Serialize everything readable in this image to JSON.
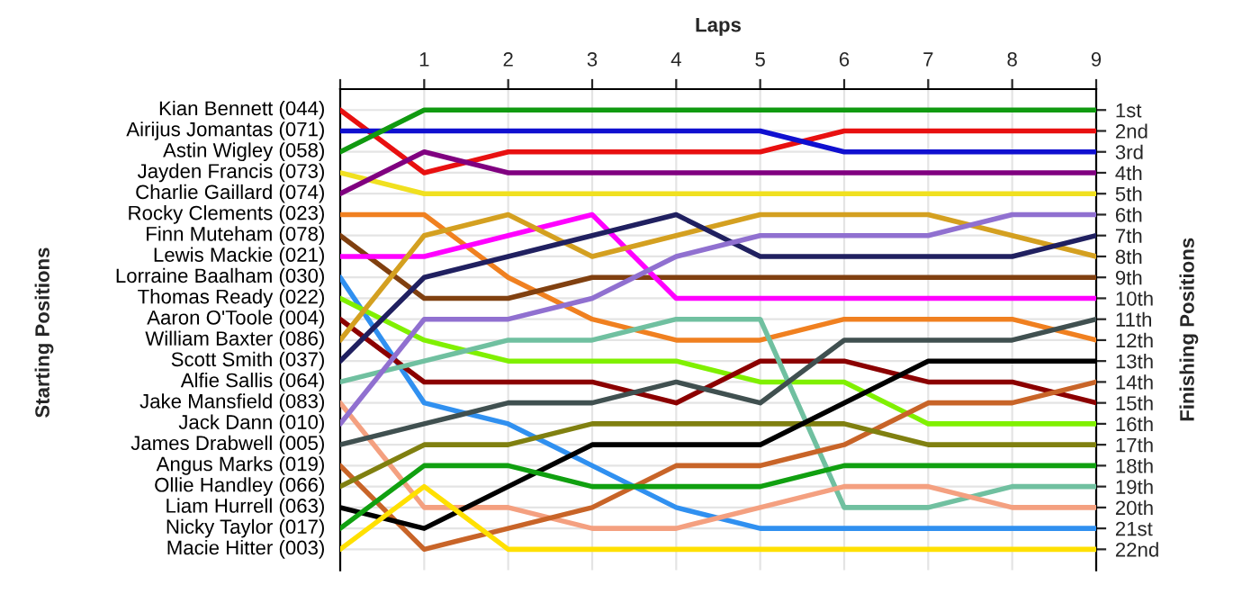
{
  "chart_data": {
    "type": "line",
    "xlabel": "Laps",
    "ylabel": "Finishing Positions",
    "annotations": [
      "Starting Positions"
    ],
    "x": [
      0,
      1,
      2,
      3,
      4,
      5,
      6,
      7,
      8,
      9
    ],
    "xlim": [
      0,
      9
    ],
    "xticks": [
      {
        "value": 0,
        "label": null
      },
      1,
      2,
      3,
      4,
      5,
      6,
      7,
      8,
      9
    ],
    "ylim": [
      23,
      0
    ],
    "yticks": [
      {
        "value": 1,
        "label": "1st"
      },
      {
        "value": 2,
        "label": "2nd"
      },
      {
        "value": 3,
        "label": "3rd"
      },
      {
        "value": 4,
        "label": "4th"
      },
      {
        "value": 5,
        "label": "5th"
      },
      {
        "value": 6,
        "label": "6th"
      },
      {
        "value": 7,
        "label": "7th"
      },
      {
        "value": 8,
        "label": "8th"
      },
      {
        "value": 9,
        "label": "9th"
      },
      {
        "value": 10,
        "label": "10th"
      },
      {
        "value": 11,
        "label": "11th"
      },
      {
        "value": 12,
        "label": "12th"
      },
      {
        "value": 13,
        "label": "13th"
      },
      {
        "value": 14,
        "label": "14th"
      },
      {
        "value": 15,
        "label": "15th"
      },
      {
        "value": 16,
        "label": "16th"
      },
      {
        "value": 17,
        "label": "17th"
      },
      {
        "value": 18,
        "label": "18th"
      },
      {
        "value": 19,
        "label": "19th"
      },
      {
        "value": 20,
        "label": "20th"
      },
      {
        "value": 21,
        "label": "21st"
      },
      {
        "value": 22,
        "label": "22nd"
      }
    ],
    "grid": true,
    "marker": "none",
    "line_style": "solid",
    "series": [
      {
        "name": "Kian Bennett (044)",
        "color": "#e81010",
        "values": [
          1,
          4,
          3,
          3,
          3,
          3,
          2,
          2,
          2,
          2
        ]
      },
      {
        "name": "Airijus Jomantas (071)",
        "color": "#1010d0",
        "values": [
          2,
          2,
          2,
          2,
          2,
          2,
          3,
          3,
          3,
          3
        ]
      },
      {
        "name": "Astin Wigley (058)",
        "color": "#109a10",
        "values": [
          3,
          1,
          1,
          1,
          1,
          1,
          1,
          1,
          1,
          1
        ]
      },
      {
        "name": "Jayden Francis (073)",
        "color": "#f0e020",
        "values": [
          4,
          5,
          5,
          5,
          5,
          5,
          5,
          5,
          5,
          5
        ]
      },
      {
        "name": "Charlie Gaillard (074)",
        "color": "#800080",
        "values": [
          5,
          3,
          4,
          4,
          4,
          4,
          4,
          4,
          4,
          4
        ]
      },
      {
        "name": "Rocky Clements (023)",
        "color": "#f08020",
        "values": [
          6,
          6,
          9,
          11,
          12,
          12,
          11,
          11,
          11,
          12
        ]
      },
      {
        "name": "Finn Muteham (078)",
        "color": "#804010",
        "values": [
          7,
          10,
          10,
          9,
          9,
          9,
          9,
          9,
          9,
          9
        ]
      },
      {
        "name": "Lewis Mackie (021)",
        "color": "#ff00ff",
        "values": [
          8,
          8,
          7,
          6,
          10,
          10,
          10,
          10,
          10,
          10
        ]
      },
      {
        "name": "Lorraine Baalham (030)",
        "color": "#3090f0",
        "values": [
          9,
          15,
          16,
          18,
          20,
          21,
          21,
          21,
          21,
          21
        ]
      },
      {
        "name": "Thomas Ready (022)",
        "color": "#80f000",
        "values": [
          10,
          12,
          13,
          13,
          13,
          14,
          14,
          16,
          16,
          16
        ]
      },
      {
        "name": "Aaron O'Toole (004)",
        "color": "#8b0000",
        "values": [
          11,
          14,
          14,
          14,
          15,
          13,
          13,
          14,
          14,
          15
        ]
      },
      {
        "name": "William Baxter (086)",
        "color": "#d4a020",
        "values": [
          12,
          7,
          6,
          8,
          7,
          6,
          6,
          6,
          7,
          8
        ]
      },
      {
        "name": "Scott Smith (037)",
        "color": "#202060",
        "values": [
          13,
          9,
          8,
          7,
          6,
          8,
          8,
          8,
          8,
          7
        ]
      },
      {
        "name": "Alfie Sallis (064)",
        "color": "#70c0a0",
        "values": [
          14,
          13,
          12,
          12,
          11,
          11,
          20,
          20,
          19,
          19
        ]
      },
      {
        "name": "Jake Mansfield (083)",
        "color": "#f4a080",
        "values": [
          15,
          20,
          20,
          21,
          21,
          20,
          19,
          19,
          20,
          20
        ]
      },
      {
        "name": "Jack Dann (010)",
        "color": "#9070d0",
        "values": [
          16,
          11,
          11,
          10,
          8,
          7,
          7,
          7,
          6,
          6
        ]
      },
      {
        "name": "James Drabwell (005)",
        "color": "#405050",
        "values": [
          17,
          16,
          15,
          15,
          14,
          15,
          12,
          12,
          12,
          11
        ]
      },
      {
        "name": "Angus Marks (019)",
        "color": "#c86428",
        "values": [
          18,
          22,
          21,
          20,
          18,
          18,
          17,
          15,
          15,
          14
        ]
      },
      {
        "name": "Ollie Handley (066)",
        "color": "#808010",
        "values": [
          19,
          17,
          17,
          16,
          16,
          16,
          16,
          17,
          17,
          17
        ]
      },
      {
        "name": "Liam Hurrell (063)",
        "color": "#000000",
        "values": [
          20,
          21,
          19,
          17,
          17,
          17,
          15,
          13,
          13,
          13
        ]
      },
      {
        "name": "Nicky Taylor (017)",
        "color": "#10a010",
        "values": [
          21,
          18,
          18,
          19,
          19,
          19,
          18,
          18,
          18,
          18
        ]
      },
      {
        "name": "Macie Hitter (003)",
        "color": "#ffe000",
        "values": [
          22,
          19,
          22,
          22,
          22,
          22,
          22,
          22,
          22,
          22
        ]
      }
    ]
  }
}
